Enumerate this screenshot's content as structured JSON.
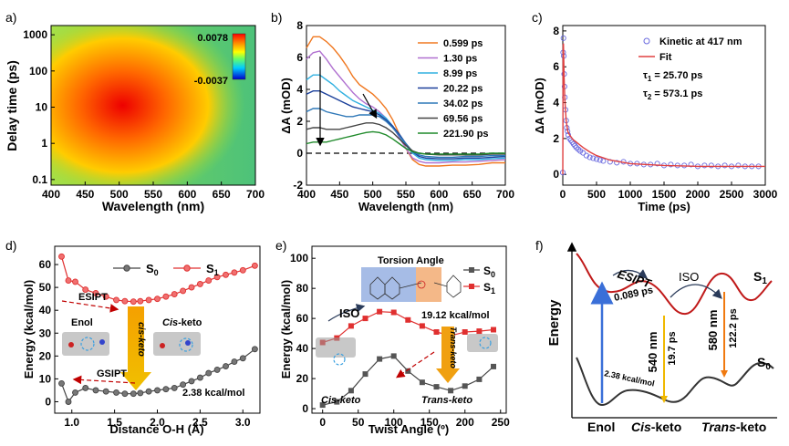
{
  "chart_data": [
    {
      "panel": "a)",
      "type": "heatmap",
      "xlabel": "Wavelength (nm)",
      "ylabel": "Delay time (ps)",
      "xlim": [
        400,
        700
      ],
      "ylim": [
        0.07,
        1800
      ],
      "yscale": "log",
      "xticks": [
        "400",
        "450",
        "500",
        "550",
        "600",
        "650",
        "700"
      ],
      "yticks": [
        "0.1",
        "1",
        "10",
        "100",
        "1000"
      ],
      "colorbar": {
        "max": "0.0078",
        "min": "-0.0037"
      }
    },
    {
      "panel": "b)",
      "type": "line",
      "xlabel": "Wavelength (nm)",
      "ylabel": "ΔA (mOD)",
      "xlim": [
        400,
        700
      ],
      "ylim": [
        -2,
        8
      ],
      "xticks": [
        "400",
        "450",
        "500",
        "550",
        "600",
        "650",
        "700"
      ],
      "yticks": [
        "-2",
        "0",
        "2",
        "4",
        "6",
        "8"
      ],
      "legend_position": "top-right",
      "series": [
        {
          "name": "0.599 ps",
          "color": "#f07820",
          "x": [
            400,
            410,
            420,
            430,
            440,
            450,
            460,
            470,
            480,
            490,
            500,
            510,
            520,
            530,
            540,
            550,
            560,
            570,
            580,
            600,
            620,
            640,
            660,
            680,
            700
          ],
          "y": [
            6.6,
            7.3,
            7.3,
            7.0,
            6.6,
            6.1,
            5.5,
            4.8,
            4.3,
            4.0,
            3.7,
            3.3,
            2.8,
            2.1,
            1.2,
            0.3,
            -0.4,
            -0.7,
            -0.8,
            -0.8,
            -0.75,
            -0.75,
            -0.7,
            -0.6,
            -0.6
          ]
        },
        {
          "name": "1.30 ps",
          "color": "#b070d0",
          "x": [
            400,
            410,
            420,
            430,
            440,
            450,
            460,
            470,
            480,
            490,
            500,
            510,
            520,
            530,
            540,
            550,
            560,
            570,
            580,
            600,
            620,
            640,
            660,
            680,
            700
          ],
          "y": [
            5.9,
            6.3,
            6.4,
            5.9,
            5.3,
            4.8,
            4.3,
            3.8,
            3.4,
            3.1,
            2.9,
            2.6,
            2.2,
            1.7,
            1.0,
            0.3,
            -0.3,
            -0.5,
            -0.6,
            -0.6,
            -0.55,
            -0.55,
            -0.5,
            -0.45,
            -0.4
          ]
        },
        {
          "name": "8.99 ps",
          "color": "#30b0e0",
          "x": [
            400,
            410,
            420,
            430,
            440,
            450,
            460,
            470,
            480,
            490,
            500,
            510,
            520,
            530,
            540,
            550,
            560,
            570,
            580,
            600,
            620,
            640,
            660,
            680,
            700
          ],
          "y": [
            4.6,
            4.9,
            4.9,
            4.6,
            4.3,
            3.9,
            3.6,
            3.3,
            3.1,
            2.9,
            2.7,
            2.5,
            2.2,
            1.7,
            1.1,
            0.5,
            0.0,
            -0.3,
            -0.4,
            -0.45,
            -0.45,
            -0.4,
            -0.4,
            -0.35,
            -0.3
          ]
        },
        {
          "name": "20.22 ps",
          "color": "#1a3f9a",
          "x": [
            400,
            410,
            420,
            430,
            440,
            450,
            460,
            470,
            480,
            490,
            500,
            510,
            520,
            530,
            540,
            550,
            560,
            570,
            580,
            600,
            620,
            640,
            660,
            680,
            700
          ],
          "y": [
            3.7,
            3.9,
            3.9,
            3.7,
            3.5,
            3.3,
            3.1,
            2.9,
            2.8,
            2.7,
            2.6,
            2.4,
            2.1,
            1.7,
            1.2,
            0.6,
            0.1,
            -0.2,
            -0.3,
            -0.35,
            -0.35,
            -0.3,
            -0.3,
            -0.25,
            -0.2
          ]
        },
        {
          "name": "34.02 ps",
          "color": "#2f78b8",
          "x": [
            400,
            410,
            420,
            430,
            440,
            450,
            460,
            470,
            480,
            490,
            500,
            510,
            520,
            530,
            540,
            550,
            560,
            570,
            580,
            600,
            620,
            640,
            660,
            680,
            700
          ],
          "y": [
            2.6,
            2.8,
            2.8,
            2.6,
            2.5,
            2.4,
            2.3,
            2.3,
            2.4,
            2.4,
            2.4,
            2.3,
            2.0,
            1.6,
            1.1,
            0.6,
            0.1,
            -0.1,
            -0.2,
            -0.25,
            -0.25,
            -0.2,
            -0.2,
            -0.15,
            -0.15
          ]
        },
        {
          "name": "69.56 ps",
          "color": "#444444",
          "x": [
            400,
            410,
            420,
            430,
            440,
            450,
            460,
            470,
            480,
            490,
            500,
            510,
            520,
            530,
            540,
            550,
            560,
            570,
            580,
            600,
            620,
            640,
            660,
            680,
            700
          ],
          "y": [
            1.5,
            1.6,
            1.6,
            1.5,
            1.5,
            1.5,
            1.6,
            1.7,
            1.8,
            1.9,
            1.9,
            1.8,
            1.6,
            1.3,
            0.9,
            0.5,
            0.15,
            0.0,
            -0.05,
            -0.1,
            -0.1,
            -0.1,
            -0.1,
            -0.05,
            -0.05
          ]
        },
        {
          "name": "221.90 ps",
          "color": "#1f8a2a",
          "x": [
            400,
            410,
            420,
            430,
            440,
            450,
            460,
            470,
            480,
            490,
            500,
            510,
            520,
            530,
            540,
            550,
            560,
            570,
            580,
            600,
            620,
            640,
            660,
            680,
            700
          ],
          "y": [
            0.6,
            0.7,
            0.7,
            0.7,
            0.8,
            0.9,
            1.0,
            1.1,
            1.2,
            1.3,
            1.35,
            1.3,
            1.15,
            0.9,
            0.6,
            0.3,
            0.1,
            0.0,
            -0.05,
            -0.05,
            -0.05,
            -0.05,
            -0.05,
            0.0,
            0.0
          ]
        }
      ],
      "baseline": 0
    },
    {
      "panel": "c)",
      "type": "scatter",
      "xlabel": "Time (ps)",
      "ylabel": "ΔA (mOD)",
      "xlim": [
        0,
        3000
      ],
      "ylim": [
        -0.6,
        8.3
      ],
      "xticks": [
        "0",
        "500",
        "1000",
        "1500",
        "2000",
        "2500",
        "3000"
      ],
      "yticks": [
        "0",
        "2",
        "4",
        "6",
        "8"
      ],
      "legend": [
        "Kinetic at 417 nm",
        "Fit"
      ],
      "annotations": [
        "τ",
        "1",
        " = 25.70 ps",
        "τ",
        "2",
        " = 573.1 ps"
      ],
      "points": {
        "x": [
          0,
          5,
          10,
          15,
          20,
          25,
          30,
          40,
          50,
          60,
          70,
          80,
          100,
          120,
          140,
          160,
          180,
          200,
          230,
          260,
          300,
          350,
          400,
          450,
          500,
          550,
          600,
          700,
          800,
          900,
          1000,
          1100,
          1200,
          1300,
          1400,
          1500,
          1600,
          1700,
          1800,
          1900,
          2000,
          2100,
          2200,
          2300,
          2400,
          2500,
          2600,
          2700,
          2800,
          2900
        ],
        "y": [
          0.1,
          6.8,
          7.6,
          6.6,
          5.6,
          4.9,
          4.3,
          3.6,
          3.0,
          2.6,
          2.4,
          2.2,
          2.0,
          1.9,
          1.8,
          1.7,
          1.6,
          1.5,
          1.4,
          1.3,
          1.2,
          1.05,
          0.95,
          0.9,
          0.85,
          0.8,
          0.75,
          0.7,
          0.65,
          0.7,
          0.6,
          0.6,
          0.55,
          0.55,
          0.6,
          0.5,
          0.55,
          0.5,
          0.5,
          0.55,
          0.45,
          0.5,
          0.5,
          0.45,
          0.5,
          0.45,
          0.5,
          0.45,
          0.45,
          0.45
        ]
      },
      "fit": {
        "x": [
          0,
          5,
          10,
          20,
          30,
          50,
          75,
          100,
          150,
          200,
          300,
          400,
          500,
          700,
          1000,
          1500,
          2000,
          2500,
          3000
        ],
        "y": [
          0.0,
          7.2,
          7.3,
          5.3,
          4.2,
          3.0,
          2.4,
          2.2,
          1.95,
          1.8,
          1.5,
          1.25,
          1.05,
          0.8,
          0.6,
          0.5,
          0.45,
          0.45,
          0.45
        ]
      }
    },
    {
      "panel": "d)",
      "type": "line",
      "xlabel": "Distance O-H (Å)",
      "ylabel": "Energy (kcal/mol)",
      "xlim": [
        0.8,
        3.2
      ],
      "ylim": [
        -5,
        68
      ],
      "xticks": [
        "1.0",
        "1.5",
        "2.0",
        "2.5",
        "3.0"
      ],
      "yticks": [
        "0",
        "10",
        "20",
        "30",
        "40",
        "50",
        "60"
      ],
      "series": [
        {
          "name": "S0",
          "color": "#444444",
          "x": [
            0.88,
            0.96,
            1.04,
            1.16,
            1.28,
            1.4,
            1.52,
            1.62,
            1.72,
            1.8,
            1.9,
            2.0,
            2.1,
            2.2,
            2.3,
            2.4,
            2.5,
            2.6,
            2.7,
            2.8,
            2.9,
            3.0,
            3.14
          ],
          "y": [
            8.0,
            0.0,
            4.0,
            6.0,
            5.0,
            4.5,
            4.0,
            3.5,
            3.5,
            3.8,
            4.5,
            5.0,
            5.5,
            6.0,
            7.5,
            9.0,
            10.5,
            12.5,
            14.0,
            15.5,
            17.5,
            19.0,
            23.0
          ]
        },
        {
          "name": "S1",
          "color": "#e03030",
          "x": [
            0.88,
            0.96,
            1.04,
            1.16,
            1.28,
            1.4,
            1.52,
            1.62,
            1.72,
            1.8,
            1.9,
            2.0,
            2.1,
            2.2,
            2.3,
            2.4,
            2.5,
            2.6,
            2.7,
            2.8,
            2.9,
            3.0,
            3.14
          ],
          "y": [
            63.5,
            53.0,
            52.5,
            49.0,
            47.5,
            46.0,
            44.5,
            44.0,
            43.8,
            44.0,
            44.5,
            45.0,
            46.0,
            47.0,
            48.5,
            50.0,
            51.5,
            53.0,
            54.5,
            55.5,
            56.5,
            57.5,
            59.5
          ]
        }
      ],
      "annotations": [
        "ESIPT",
        "Enol",
        "Cis",
        "-keto",
        "cis-keto",
        "GSIPT",
        "2.38 kcal/mol"
      ]
    },
    {
      "panel": "e)",
      "type": "line",
      "xlabel": "Twist Angle (º)",
      "ylabel": "Energy (kcal/mol)",
      "xlim": [
        -15,
        258
      ],
      "ylim": [
        -3,
        108
      ],
      "xticks": [
        "0",
        "50",
        "100",
        "150",
        "200",
        "250"
      ],
      "yticks": [
        "0",
        "20",
        "40",
        "60",
        "80",
        "100"
      ],
      "series": [
        {
          "name": "S0",
          "color": "#444444",
          "x": [
            0,
            20,
            40,
            60,
            80,
            100,
            120,
            140,
            160,
            180,
            200,
            220,
            240
          ],
          "y": [
            2.4,
            4.5,
            12.0,
            23.0,
            33.0,
            35.0,
            25.0,
            17.5,
            14.5,
            12.0,
            15.0,
            19.5,
            28.0
          ]
        },
        {
          "name": "S1",
          "color": "#e03030",
          "x": [
            0,
            20,
            40,
            60,
            80,
            100,
            120,
            140,
            160,
            180,
            200,
            220,
            240
          ],
          "y": [
            44.0,
            47.0,
            55.0,
            60.0,
            64.5,
            64.0,
            59.0,
            55.0,
            51.0,
            48.5,
            51.0,
            51.5,
            52.5
          ]
        }
      ],
      "annotations": [
        "Torsion Angle",
        "ISO",
        "19.12 kcal/mol",
        "Cis-keto",
        "Trans-keto",
        "Trans-keto"
      ]
    },
    {
      "panel": "f)",
      "type": "diagram",
      "ylabel": "Energy",
      "labels": [
        "S",
        "1",
        "S",
        "0",
        "ESIPT",
        "0.089 ps",
        "ISO",
        "540 nm",
        "19.7 ps",
        "580 nm",
        "122.2 ps",
        "2.38 kcal/mol",
        "Enol",
        "Cis",
        "-keto",
        "Trans",
        "-keto"
      ]
    }
  ]
}
